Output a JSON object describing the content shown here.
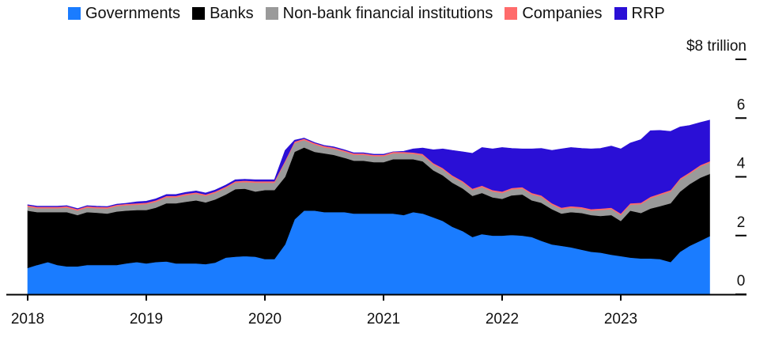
{
  "chart_data": {
    "type": "area",
    "stacked": true,
    "y_unit_label": "$8 trillion",
    "ylim": [
      0,
      8
    ],
    "y_ticks": [
      {
        "value": 0,
        "label": "0"
      },
      {
        "value": 2,
        "label": "2"
      },
      {
        "value": 4,
        "label": "4"
      },
      {
        "value": 6,
        "label": "6"
      },
      {
        "value": 8,
        "label": "$8 trillion"
      }
    ],
    "x_ticks": [
      "2018",
      "2019",
      "2020",
      "2021",
      "2022",
      "2023"
    ],
    "xlim": [
      2018.0,
      2024.0
    ],
    "legend_position": "top",
    "x": [
      2018.0,
      2018.08,
      2018.17,
      2018.25,
      2018.33,
      2018.42,
      2018.5,
      2018.58,
      2018.67,
      2018.75,
      2018.83,
      2018.92,
      2019.0,
      2019.08,
      2019.17,
      2019.25,
      2019.33,
      2019.42,
      2019.5,
      2019.58,
      2019.67,
      2019.75,
      2019.83,
      2019.92,
      2020.0,
      2020.08,
      2020.17,
      2020.25,
      2020.33,
      2020.42,
      2020.5,
      2020.58,
      2020.67,
      2020.75,
      2020.83,
      2020.92,
      2021.0,
      2021.08,
      2021.17,
      2021.25,
      2021.33,
      2021.42,
      2021.5,
      2021.58,
      2021.67,
      2021.75,
      2021.83,
      2021.92,
      2022.0,
      2022.08,
      2022.17,
      2022.25,
      2022.33,
      2022.42,
      2022.5,
      2022.58,
      2022.67,
      2022.75,
      2022.83,
      2022.92,
      2023.0,
      2023.08,
      2023.17,
      2023.25,
      2023.33,
      2023.42,
      2023.5,
      2023.58,
      2023.67,
      2023.75
    ],
    "series": [
      {
        "name": "Governments",
        "color": "#1a7cff",
        "values": [
          0.9,
          1.0,
          1.1,
          1.0,
          0.95,
          0.95,
          1.0,
          1.0,
          1.0,
          1.0,
          1.05,
          1.1,
          1.05,
          1.1,
          1.12,
          1.05,
          1.05,
          1.05,
          1.03,
          1.08,
          1.25,
          1.28,
          1.3,
          1.28,
          1.2,
          1.2,
          1.7,
          2.55,
          2.85,
          2.85,
          2.8,
          2.8,
          2.8,
          2.75,
          2.75,
          2.75,
          2.75,
          2.75,
          2.7,
          2.8,
          2.75,
          2.62,
          2.5,
          2.3,
          2.15,
          1.95,
          2.05,
          2.0,
          2.0,
          2.02,
          2.0,
          1.95,
          1.82,
          1.7,
          1.65,
          1.6,
          1.52,
          1.45,
          1.42,
          1.35,
          1.3,
          1.25,
          1.22,
          1.22,
          1.2,
          1.1,
          1.45,
          1.65,
          1.82,
          1.98
        ]
      },
      {
        "name": "Banks",
        "color": "#000000",
        "values": [
          1.95,
          1.8,
          1.7,
          1.8,
          1.85,
          1.75,
          1.8,
          1.78,
          1.75,
          1.82,
          1.8,
          1.77,
          1.82,
          1.85,
          1.98,
          2.05,
          2.1,
          2.15,
          2.1,
          2.15,
          2.15,
          2.3,
          2.3,
          2.22,
          2.35,
          2.35,
          2.3,
          2.3,
          2.15,
          2.0,
          2.0,
          1.95,
          1.85,
          1.8,
          1.8,
          1.75,
          1.75,
          1.85,
          1.9,
          1.8,
          1.78,
          1.6,
          1.55,
          1.5,
          1.45,
          1.4,
          1.4,
          1.3,
          1.25,
          1.35,
          1.4,
          1.25,
          1.3,
          1.2,
          1.1,
          1.2,
          1.25,
          1.25,
          1.25,
          1.35,
          1.2,
          1.6,
          1.55,
          1.7,
          1.8,
          2.0,
          2.05,
          2.1,
          2.15,
          2.12
        ]
      },
      {
        "name": "Non-bank financial institutions",
        "color": "#9a9a9a",
        "values": [
          0.13,
          0.13,
          0.13,
          0.13,
          0.15,
          0.15,
          0.15,
          0.15,
          0.17,
          0.18,
          0.18,
          0.18,
          0.2,
          0.2,
          0.2,
          0.2,
          0.22,
          0.22,
          0.22,
          0.22,
          0.22,
          0.22,
          0.22,
          0.3,
          0.25,
          0.25,
          0.5,
          0.3,
          0.25,
          0.25,
          0.2,
          0.2,
          0.2,
          0.2,
          0.2,
          0.2,
          0.2,
          0.2,
          0.2,
          0.18,
          0.2,
          0.2,
          0.2,
          0.2,
          0.2,
          0.2,
          0.2,
          0.2,
          0.2,
          0.2,
          0.2,
          0.2,
          0.2,
          0.15,
          0.15,
          0.15,
          0.15,
          0.15,
          0.2,
          0.2,
          0.2,
          0.2,
          0.3,
          0.35,
          0.38,
          0.4,
          0.4,
          0.35,
          0.38,
          0.38
        ]
      },
      {
        "name": "Companies",
        "color": "#ff6b6b",
        "values": [
          0.05,
          0.05,
          0.05,
          0.05,
          0.05,
          0.05,
          0.05,
          0.05,
          0.05,
          0.05,
          0.05,
          0.05,
          0.05,
          0.05,
          0.05,
          0.05,
          0.05,
          0.05,
          0.05,
          0.05,
          0.05,
          0.05,
          0.05,
          0.05,
          0.05,
          0.05,
          0.05,
          0.05,
          0.05,
          0.05,
          0.05,
          0.05,
          0.05,
          0.05,
          0.05,
          0.05,
          0.05,
          0.05,
          0.05,
          0.05,
          0.05,
          0.05,
          0.05,
          0.05,
          0.05,
          0.05,
          0.05,
          0.05,
          0.05,
          0.05,
          0.05,
          0.05,
          0.05,
          0.05,
          0.05,
          0.05,
          0.05,
          0.05,
          0.05,
          0.05,
          0.05,
          0.05,
          0.05,
          0.05,
          0.05,
          0.05,
          0.05,
          0.05,
          0.05,
          0.05
        ]
      },
      {
        "name": "RRP",
        "color": "#2a0fd6",
        "values": [
          0.02,
          0.02,
          0.02,
          0.02,
          0.02,
          0.02,
          0.02,
          0.02,
          0.02,
          0.02,
          0.02,
          0.05,
          0.05,
          0.05,
          0.05,
          0.05,
          0.05,
          0.05,
          0.05,
          0.05,
          0.05,
          0.05,
          0.05,
          0.05,
          0.05,
          0.05,
          0.35,
          0.05,
          0.02,
          0.02,
          0.02,
          0.02,
          0.02,
          0.02,
          0.02,
          0.02,
          0.02,
          0.0,
          0.02,
          0.12,
          0.2,
          0.45,
          0.65,
          0.85,
          1.0,
          1.2,
          1.3,
          1.4,
          1.5,
          1.35,
          1.3,
          1.5,
          1.6,
          1.8,
          2.0,
          2.0,
          2.0,
          2.05,
          2.05,
          2.1,
          2.2,
          2.05,
          2.15,
          2.25,
          2.15,
          2.0,
          1.75,
          1.6,
          1.45,
          1.4
        ]
      }
    ]
  }
}
